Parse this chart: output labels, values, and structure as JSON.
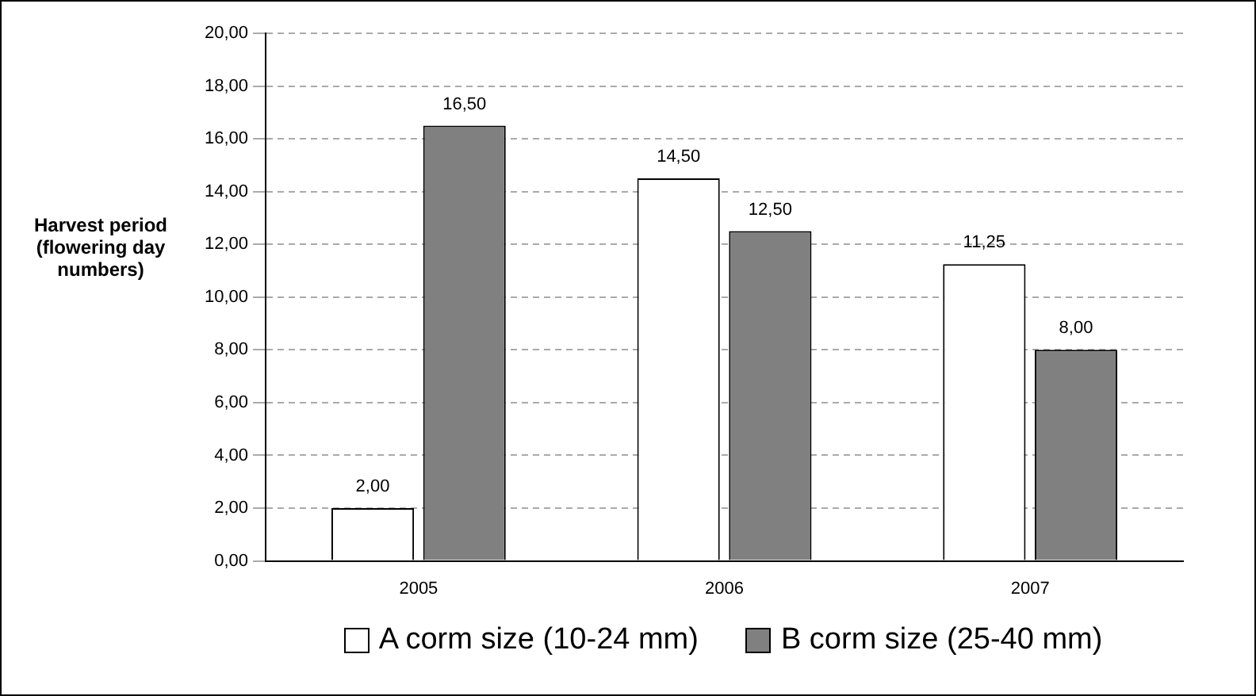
{
  "chart_data": {
    "type": "bar",
    "ylabel": "Harvest period (flowering day numbers)",
    "categories": [
      "2005",
      "2006",
      "2007"
    ],
    "series": [
      {
        "name": "A corm size (10-24 mm)",
        "color": "#ffffff",
        "values": [
          2,
          14.5,
          11.25
        ],
        "value_labels": [
          "2,00",
          "14,50",
          "11,25"
        ]
      },
      {
        "name": "B corm size (25-40 mm)",
        "color": "#808080",
        "values": [
          16.5,
          12.5,
          8
        ],
        "value_labels": [
          "16,50",
          "12,50",
          "8,00"
        ]
      }
    ],
    "ylim": [
      0,
      20
    ],
    "yticks": [
      {
        "value": 0,
        "label": "0,00"
      },
      {
        "value": 2,
        "label": "2,00"
      },
      {
        "value": 4,
        "label": "4,00"
      },
      {
        "value": 6,
        "label": "6,00"
      },
      {
        "value": 8,
        "label": "8,00"
      },
      {
        "value": 10,
        "label": "10,00"
      },
      {
        "value": 12,
        "label": "12,00"
      },
      {
        "value": 14,
        "label": "14,00"
      },
      {
        "value": 16,
        "label": "16,00"
      },
      {
        "value": 18,
        "label": "18,00"
      },
      {
        "value": 20,
        "label": "20,00"
      }
    ],
    "grid": "y",
    "legend": "bottom"
  }
}
